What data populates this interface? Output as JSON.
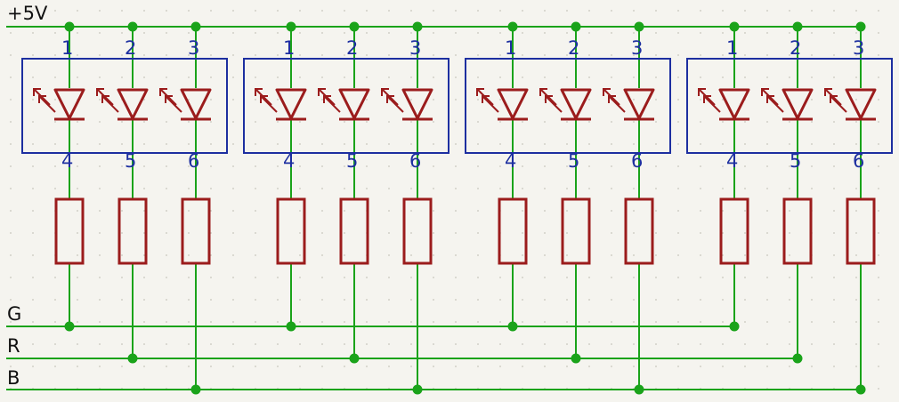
{
  "nets": {
    "vcc": "+5V",
    "g": "G",
    "r": "R",
    "b": "B"
  },
  "led_module": {
    "count": 4,
    "top_pins": [
      "1",
      "2",
      "3"
    ],
    "bottom_pins": [
      "4",
      "5",
      "6"
    ]
  },
  "colors": {
    "wire": "#1aa31a",
    "junction": "#1aa31a",
    "component": "#9b1c1c",
    "module_box": "#1d2fa0",
    "pin_number": "#1d2fa0",
    "background": "#f5f4ef",
    "grid_dot": "#c8c6bc"
  }
}
